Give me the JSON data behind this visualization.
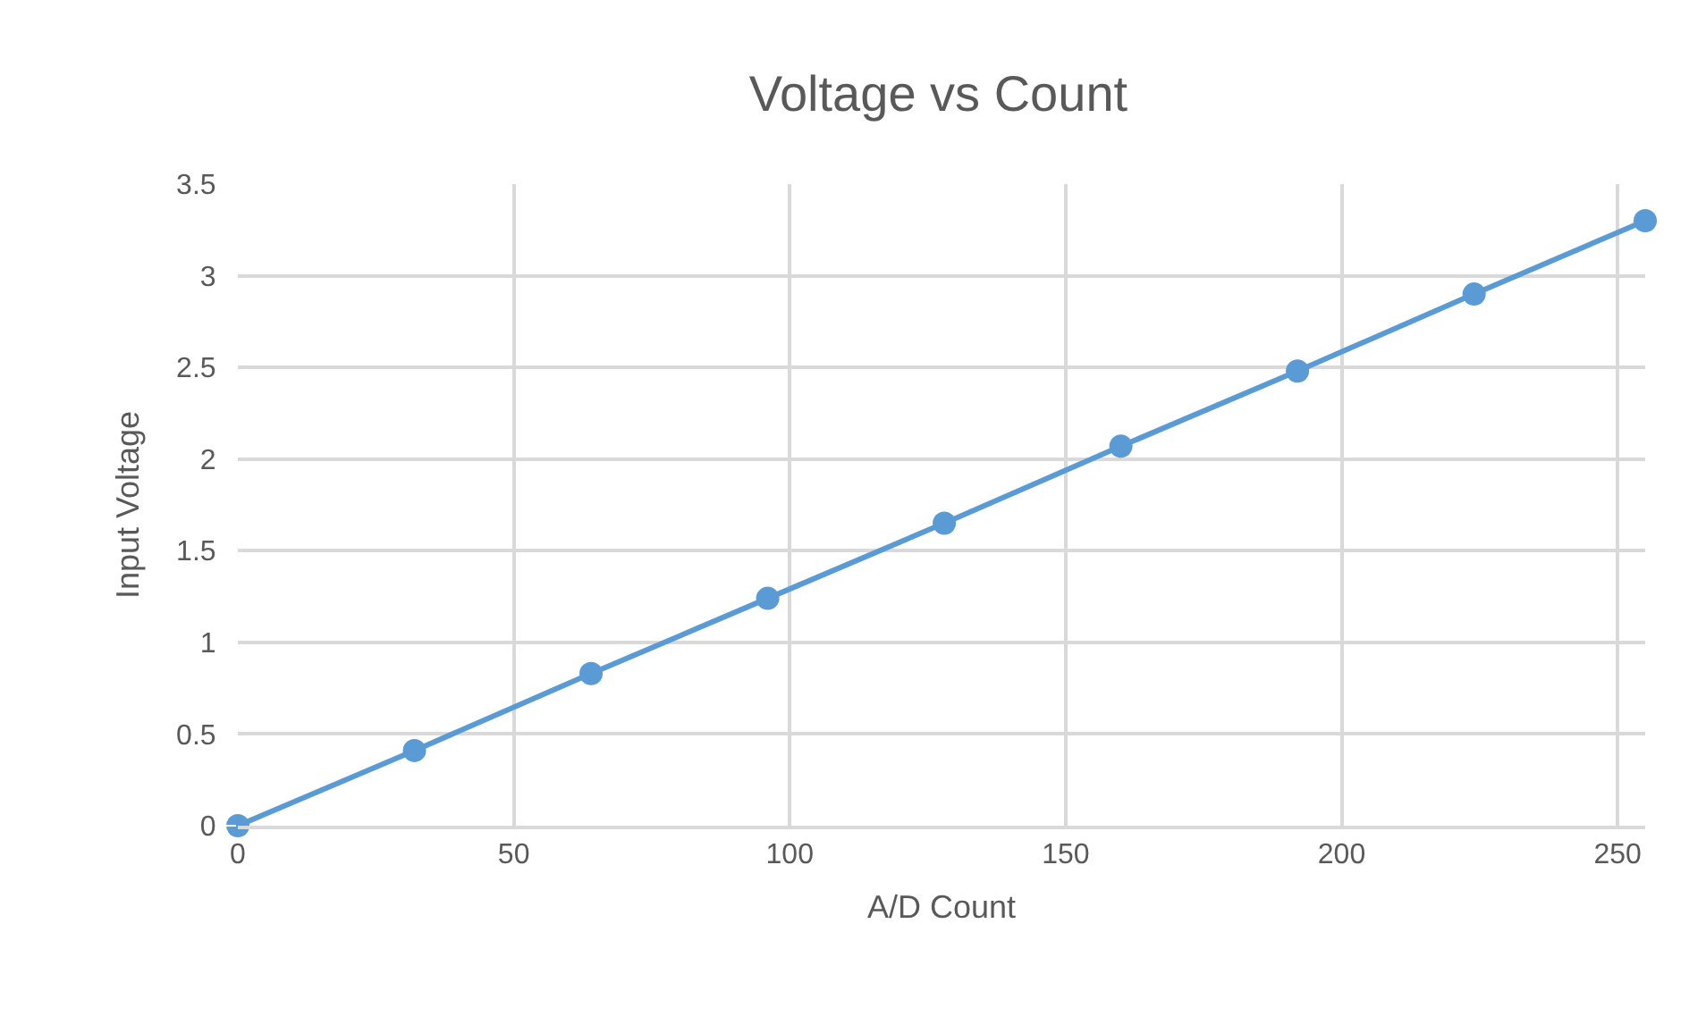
{
  "chart_data": {
    "type": "line",
    "title": "Voltage vs Count",
    "xlabel": "A/D Count",
    "ylabel": "Input Voltage",
    "x": [
      0,
      32,
      64,
      96,
      128,
      160,
      192,
      224,
      255
    ],
    "series": [
      {
        "color": "#5b9bd5",
        "values": [
          0,
          0.41,
          0.83,
          1.24,
          1.65,
          2.07,
          2.48,
          2.9,
          3.3
        ]
      }
    ],
    "xlim": [
      0,
      255
    ],
    "xticks": [
      0,
      50,
      100,
      150,
      200,
      250
    ],
    "ylim": [
      0,
      3.5
    ],
    "yticks": [
      0,
      0.5,
      1,
      1.5,
      2,
      2.5,
      3,
      3.5
    ],
    "grid": true,
    "marker": "circle",
    "line_style": "solid"
  }
}
